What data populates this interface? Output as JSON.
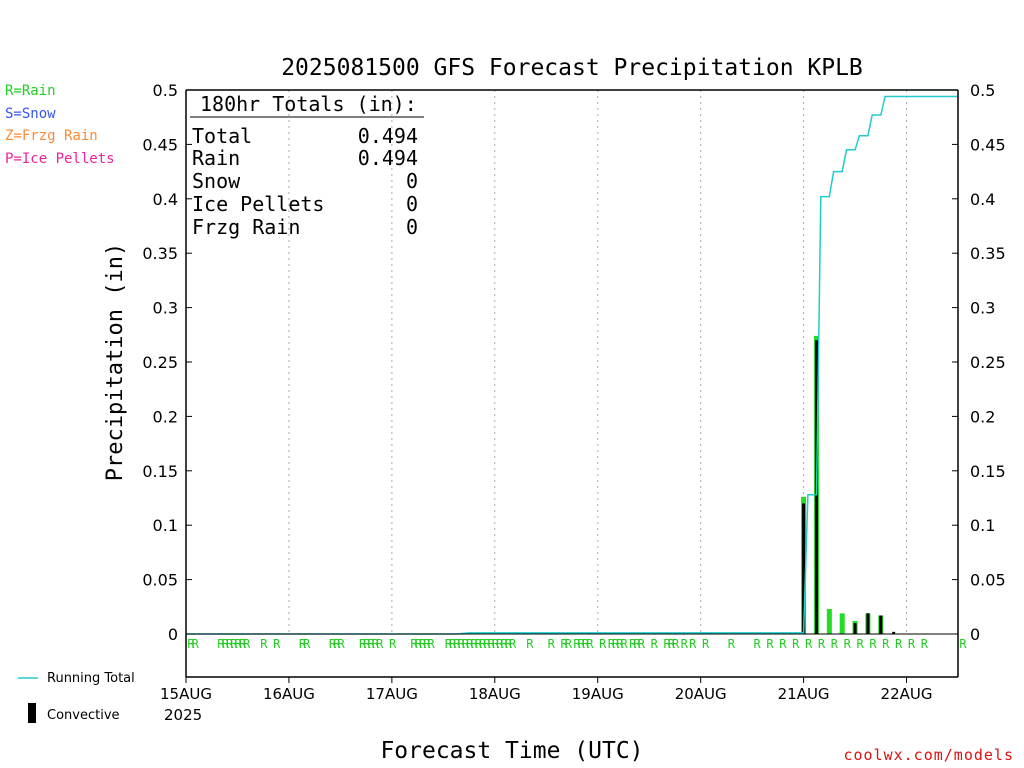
{
  "chart_data": {
    "type": "bar",
    "title": "2025081500 GFS Forecast Precipitation KPLB",
    "ylabel": "Precipitation (in)",
    "xlabel": "Forecast Time (UTC)",
    "ylim": [
      0,
      0.5
    ],
    "yticks": [
      "0",
      "0.05",
      "0.1",
      "0.15",
      "0.2",
      "0.25",
      "0.3",
      "0.35",
      "0.4",
      "0.45",
      "0.5"
    ],
    "xticks": [
      "15AUG",
      "16AUG",
      "17AUG",
      "18AUG",
      "19AUG",
      "20AUG",
      "21AUG",
      "22AUG"
    ],
    "x_year": "2025",
    "x_unit": "forecast hour",
    "xlim": [
      0,
      180
    ],
    "grid": "vertical dotted at day boundaries",
    "totals_box": {
      "header": "180hr Totals (in):",
      "rows": [
        {
          "label": "Total",
          "value": "0.494"
        },
        {
          "label": "Rain",
          "value": "0.494"
        },
        {
          "label": "Snow",
          "value": "0"
        },
        {
          "label": "Ice Pellets",
          "value": "0"
        },
        {
          "label": "Frzg Rain",
          "value": "0"
        }
      ]
    },
    "ptype_legend": [
      {
        "text": "R=Rain",
        "color": "#22cc22"
      },
      {
        "text": "S=Snow",
        "color": "#3355ee"
      },
      {
        "text": "Z=Frzg Rain",
        "color": "#ff8833"
      },
      {
        "text": "P=Ice Pellets",
        "color": "#ee2299"
      }
    ],
    "series_legend": [
      {
        "name": "Running Total",
        "color": "#22cccc"
      },
      {
        "name": "Convective",
        "color": "#000000"
      }
    ],
    "series": [
      {
        "name": "Rain",
        "color": "#22dd22",
        "x": [
          144,
          147,
          150,
          153,
          156,
          159,
          162,
          165
        ],
        "values": [
          0.126,
          0.274,
          0.023,
          0.019,
          0.012,
          0.019,
          0.017,
          0.0
        ]
      },
      {
        "name": "Convective",
        "color": "#000000",
        "x": [
          144,
          147,
          150,
          153,
          156,
          159,
          162,
          165
        ],
        "values": [
          0.12,
          0.27,
          0.0,
          0.0,
          0.01,
          0.019,
          0.017,
          0.002
        ]
      },
      {
        "name": "Running Total",
        "color": "#22cccc",
        "x": [
          0,
          63,
          66,
          144,
          145,
          147,
          148,
          150,
          151,
          153,
          154,
          156,
          157,
          159,
          160,
          162,
          163,
          180
        ],
        "values": [
          0,
          0,
          0.001,
          0.001,
          0.128,
          0.128,
          0.402,
          0.402,
          0.425,
          0.425,
          0.445,
          0.445,
          0.458,
          0.458,
          0.477,
          0.477,
          0.494,
          0.494
        ]
      }
    ],
    "ptype_markers": {
      "label": "R",
      "color": "#22cc22",
      "hours": [
        0,
        1,
        7,
        8,
        9,
        10,
        11,
        12,
        13,
        17,
        20,
        26,
        27,
        33,
        34,
        35,
        40,
        41,
        42,
        43,
        44,
        47,
        52,
        53,
        54,
        55,
        56,
        60,
        61,
        62,
        63,
        64,
        65,
        66,
        67,
        68,
        69,
        70,
        71,
        72,
        73,
        74,
        75,
        79,
        84,
        87,
        88,
        90,
        91,
        92,
        93,
        96,
        98,
        99,
        100,
        101,
        103,
        104,
        105,
        108,
        111,
        112,
        113,
        115,
        117,
        120,
        126,
        132,
        135,
        138,
        141,
        144,
        147,
        150,
        153,
        156,
        159,
        162,
        165,
        168,
        171,
        180
      ]
    }
  },
  "watermark": "coolwx.com/models"
}
